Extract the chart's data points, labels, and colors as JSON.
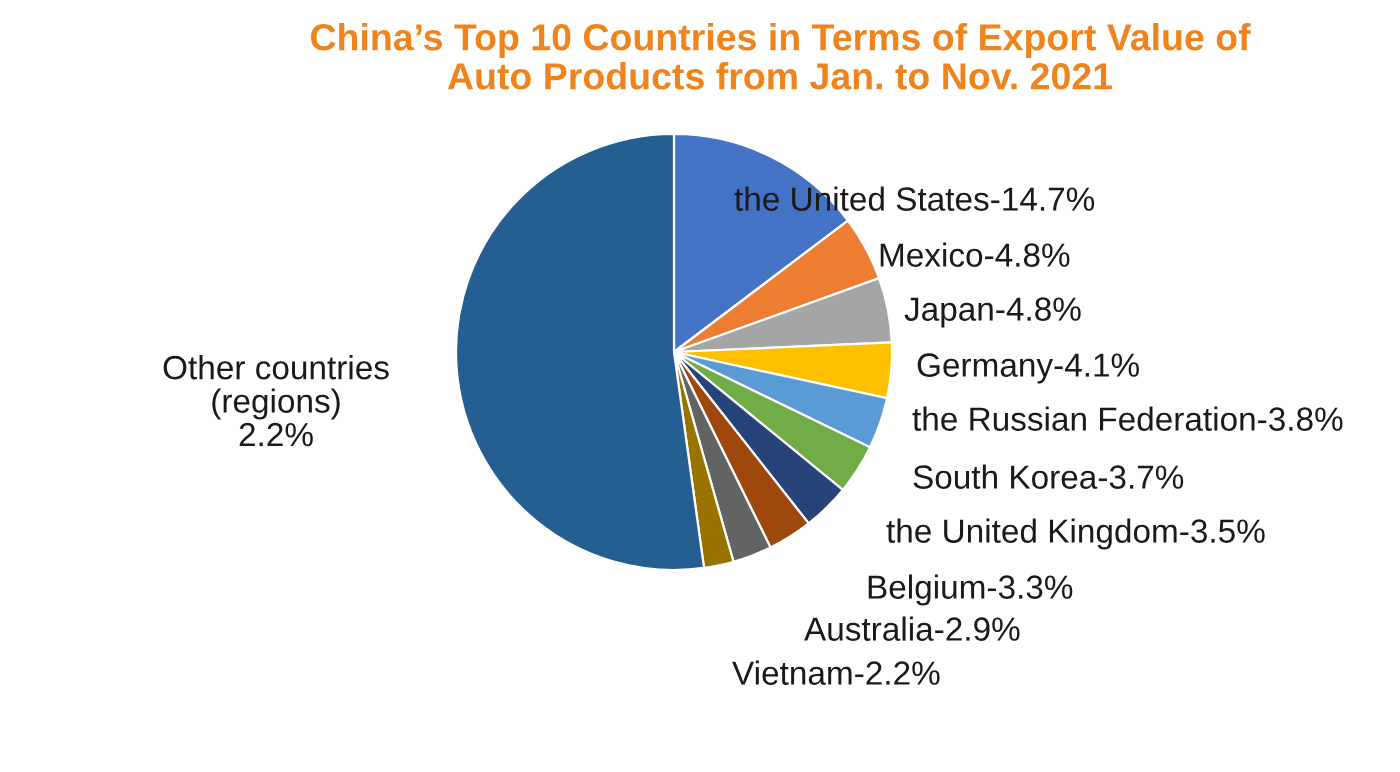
{
  "chart_data": {
    "type": "pie",
    "title": "China’s Top 10 Countries in Terms of Export Value of\nAuto Products from Jan. to Nov. 2021",
    "categories": [
      "the United States-14.7%",
      "Mexico-4.8%",
      "Japan-4.8%",
      "Germany-4.1%",
      "the Russian Federation-3.8%",
      "South Korea-3.7%",
      "the United Kingdom-3.5%",
      "Belgium-3.3%",
      "Australia-2.9%",
      "Vietnam-2.2%",
      "Other countries\n(regions)\n2.2%"
    ],
    "values": [
      14.7,
      4.8,
      4.8,
      4.1,
      3.8,
      3.7,
      3.5,
      3.3,
      2.9,
      2.2,
      52.2
    ],
    "colors": [
      "#4472c4",
      "#ed7d31",
      "#a5a5a5",
      "#ffc000",
      "#5b9bd5",
      "#70ad47",
      "#264478",
      "#9e480e",
      "#636363",
      "#997300",
      "#255e91"
    ],
    "legend": false
  }
}
